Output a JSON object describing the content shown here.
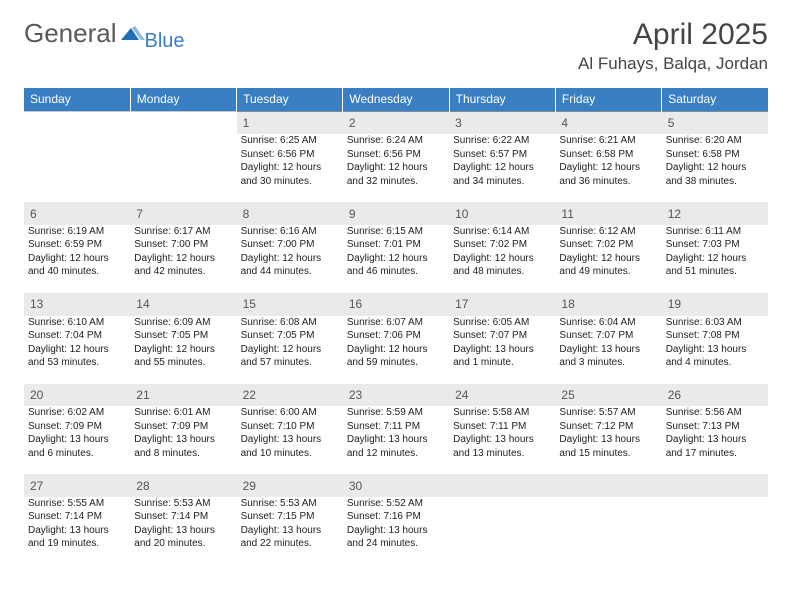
{
  "brand": {
    "general": "General",
    "blue": "Blue",
    "arrow_color": "#1f6fb5"
  },
  "header": {
    "month_title": "April 2025",
    "location": "Al Fuhays, Balqa, Jordan"
  },
  "colors": {
    "header_bg": "#3a7fc4",
    "header_text": "#ffffff",
    "daynum_bg": "#e9eaec",
    "daynum_border": "#7e8b9a",
    "text": "#222222"
  },
  "weekdays": [
    "Sunday",
    "Monday",
    "Tuesday",
    "Wednesday",
    "Thursday",
    "Friday",
    "Saturday"
  ],
  "weeks": [
    [
      null,
      null,
      {
        "n": "1",
        "sunrise": "Sunrise: 6:25 AM",
        "sunset": "Sunset: 6:56 PM",
        "daylight": "Daylight: 12 hours and 30 minutes."
      },
      {
        "n": "2",
        "sunrise": "Sunrise: 6:24 AM",
        "sunset": "Sunset: 6:56 PM",
        "daylight": "Daylight: 12 hours and 32 minutes."
      },
      {
        "n": "3",
        "sunrise": "Sunrise: 6:22 AM",
        "sunset": "Sunset: 6:57 PM",
        "daylight": "Daylight: 12 hours and 34 minutes."
      },
      {
        "n": "4",
        "sunrise": "Sunrise: 6:21 AM",
        "sunset": "Sunset: 6:58 PM",
        "daylight": "Daylight: 12 hours and 36 minutes."
      },
      {
        "n": "5",
        "sunrise": "Sunrise: 6:20 AM",
        "sunset": "Sunset: 6:58 PM",
        "daylight": "Daylight: 12 hours and 38 minutes."
      }
    ],
    [
      {
        "n": "6",
        "sunrise": "Sunrise: 6:19 AM",
        "sunset": "Sunset: 6:59 PM",
        "daylight": "Daylight: 12 hours and 40 minutes."
      },
      {
        "n": "7",
        "sunrise": "Sunrise: 6:17 AM",
        "sunset": "Sunset: 7:00 PM",
        "daylight": "Daylight: 12 hours and 42 minutes."
      },
      {
        "n": "8",
        "sunrise": "Sunrise: 6:16 AM",
        "sunset": "Sunset: 7:00 PM",
        "daylight": "Daylight: 12 hours and 44 minutes."
      },
      {
        "n": "9",
        "sunrise": "Sunrise: 6:15 AM",
        "sunset": "Sunset: 7:01 PM",
        "daylight": "Daylight: 12 hours and 46 minutes."
      },
      {
        "n": "10",
        "sunrise": "Sunrise: 6:14 AM",
        "sunset": "Sunset: 7:02 PM",
        "daylight": "Daylight: 12 hours and 48 minutes."
      },
      {
        "n": "11",
        "sunrise": "Sunrise: 6:12 AM",
        "sunset": "Sunset: 7:02 PM",
        "daylight": "Daylight: 12 hours and 49 minutes."
      },
      {
        "n": "12",
        "sunrise": "Sunrise: 6:11 AM",
        "sunset": "Sunset: 7:03 PM",
        "daylight": "Daylight: 12 hours and 51 minutes."
      }
    ],
    [
      {
        "n": "13",
        "sunrise": "Sunrise: 6:10 AM",
        "sunset": "Sunset: 7:04 PM",
        "daylight": "Daylight: 12 hours and 53 minutes."
      },
      {
        "n": "14",
        "sunrise": "Sunrise: 6:09 AM",
        "sunset": "Sunset: 7:05 PM",
        "daylight": "Daylight: 12 hours and 55 minutes."
      },
      {
        "n": "15",
        "sunrise": "Sunrise: 6:08 AM",
        "sunset": "Sunset: 7:05 PM",
        "daylight": "Daylight: 12 hours and 57 minutes."
      },
      {
        "n": "16",
        "sunrise": "Sunrise: 6:07 AM",
        "sunset": "Sunset: 7:06 PM",
        "daylight": "Daylight: 12 hours and 59 minutes."
      },
      {
        "n": "17",
        "sunrise": "Sunrise: 6:05 AM",
        "sunset": "Sunset: 7:07 PM",
        "daylight": "Daylight: 13 hours and 1 minute."
      },
      {
        "n": "18",
        "sunrise": "Sunrise: 6:04 AM",
        "sunset": "Sunset: 7:07 PM",
        "daylight": "Daylight: 13 hours and 3 minutes."
      },
      {
        "n": "19",
        "sunrise": "Sunrise: 6:03 AM",
        "sunset": "Sunset: 7:08 PM",
        "daylight": "Daylight: 13 hours and 4 minutes."
      }
    ],
    [
      {
        "n": "20",
        "sunrise": "Sunrise: 6:02 AM",
        "sunset": "Sunset: 7:09 PM",
        "daylight": "Daylight: 13 hours and 6 minutes."
      },
      {
        "n": "21",
        "sunrise": "Sunrise: 6:01 AM",
        "sunset": "Sunset: 7:09 PM",
        "daylight": "Daylight: 13 hours and 8 minutes."
      },
      {
        "n": "22",
        "sunrise": "Sunrise: 6:00 AM",
        "sunset": "Sunset: 7:10 PM",
        "daylight": "Daylight: 13 hours and 10 minutes."
      },
      {
        "n": "23",
        "sunrise": "Sunrise: 5:59 AM",
        "sunset": "Sunset: 7:11 PM",
        "daylight": "Daylight: 13 hours and 12 minutes."
      },
      {
        "n": "24",
        "sunrise": "Sunrise: 5:58 AM",
        "sunset": "Sunset: 7:11 PM",
        "daylight": "Daylight: 13 hours and 13 minutes."
      },
      {
        "n": "25",
        "sunrise": "Sunrise: 5:57 AM",
        "sunset": "Sunset: 7:12 PM",
        "daylight": "Daylight: 13 hours and 15 minutes."
      },
      {
        "n": "26",
        "sunrise": "Sunrise: 5:56 AM",
        "sunset": "Sunset: 7:13 PM",
        "daylight": "Daylight: 13 hours and 17 minutes."
      }
    ],
    [
      {
        "n": "27",
        "sunrise": "Sunrise: 5:55 AM",
        "sunset": "Sunset: 7:14 PM",
        "daylight": "Daylight: 13 hours and 19 minutes."
      },
      {
        "n": "28",
        "sunrise": "Sunrise: 5:53 AM",
        "sunset": "Sunset: 7:14 PM",
        "daylight": "Daylight: 13 hours and 20 minutes."
      },
      {
        "n": "29",
        "sunrise": "Sunrise: 5:53 AM",
        "sunset": "Sunset: 7:15 PM",
        "daylight": "Daylight: 13 hours and 22 minutes."
      },
      {
        "n": "30",
        "sunrise": "Sunrise: 5:52 AM",
        "sunset": "Sunset: 7:16 PM",
        "daylight": "Daylight: 13 hours and 24 minutes."
      },
      null,
      null,
      null
    ]
  ]
}
